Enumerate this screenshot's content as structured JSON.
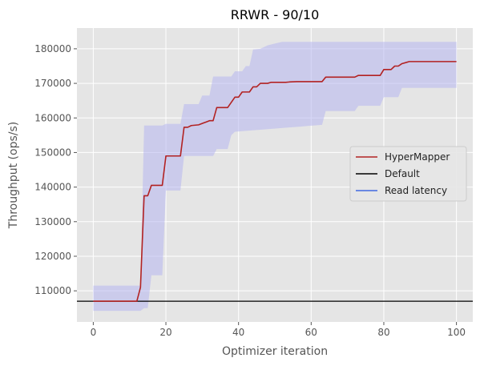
{
  "chart_data": {
    "type": "line",
    "title": "RRWR - 90/10",
    "xlabel": "Optimizer iteration",
    "ylabel": "Throughput (ops/s)",
    "xlim": [
      -4.5,
      104.5
    ],
    "ylim": [
      101000,
      186000
    ],
    "x_ticks": [
      0,
      20,
      40,
      60,
      80,
      100
    ],
    "y_ticks": [
      110000,
      120000,
      130000,
      140000,
      150000,
      160000,
      170000,
      180000
    ],
    "grid": true,
    "legend_position": "center-right",
    "series": [
      {
        "name": "HyperMapper",
        "color": "#b22222",
        "points": [
          [
            0,
            107000
          ],
          [
            12,
            107000
          ],
          [
            13,
            111000
          ],
          [
            14,
            137500
          ],
          [
            15,
            137500
          ],
          [
            16,
            140500
          ],
          [
            19,
            140500
          ],
          [
            20,
            149000
          ],
          [
            24,
            149000
          ],
          [
            25,
            157300
          ],
          [
            26,
            157300
          ],
          [
            27,
            157800
          ],
          [
            29,
            158000
          ],
          [
            31,
            158800
          ],
          [
            32,
            159200
          ],
          [
            33,
            159200
          ],
          [
            34,
            163000
          ],
          [
            37,
            163000
          ],
          [
            38,
            164500
          ],
          [
            39,
            166000
          ],
          [
            40,
            166000
          ],
          [
            41,
            167500
          ],
          [
            43,
            167500
          ],
          [
            44,
            169000
          ],
          [
            45,
            169000
          ],
          [
            46,
            170000
          ],
          [
            48,
            170000
          ],
          [
            49,
            170300
          ],
          [
            53,
            170300
          ],
          [
            54,
            170400
          ],
          [
            56,
            170500
          ],
          [
            63,
            170500
          ],
          [
            64,
            171800
          ],
          [
            72,
            171800
          ],
          [
            73,
            172300
          ],
          [
            79,
            172300
          ],
          [
            80,
            174000
          ],
          [
            82,
            174000
          ],
          [
            83,
            175000
          ],
          [
            84,
            175000
          ],
          [
            85,
            175700
          ],
          [
            87,
            176300
          ],
          [
            100,
            176300
          ]
        ],
        "band_upper": [
          [
            0,
            111500
          ],
          [
            13,
            111500
          ],
          [
            14,
            157800
          ],
          [
            19,
            157800
          ],
          [
            20,
            158300
          ],
          [
            24,
            158300
          ],
          [
            25,
            164000
          ],
          [
            29,
            164000
          ],
          [
            30,
            166500
          ],
          [
            32,
            166500
          ],
          [
            33,
            172000
          ],
          [
            38,
            172000
          ],
          [
            39,
            173500
          ],
          [
            41,
            173500
          ],
          [
            42,
            175000
          ],
          [
            43,
            175000
          ],
          [
            44,
            179800
          ],
          [
            46,
            180000
          ],
          [
            48,
            181000
          ],
          [
            50,
            181500
          ],
          [
            52,
            182000
          ],
          [
            100,
            182000
          ]
        ],
        "band_lower": [
          [
            0,
            104200
          ],
          [
            13,
            104200
          ],
          [
            14,
            105000
          ],
          [
            15,
            105000
          ],
          [
            16,
            114500
          ],
          [
            19,
            114500
          ],
          [
            20,
            139000
          ],
          [
            24,
            139000
          ],
          [
            25,
            149000
          ],
          [
            33,
            149000
          ],
          [
            34,
            151000
          ],
          [
            37,
            151000
          ],
          [
            38,
            155000
          ],
          [
            39,
            156000
          ],
          [
            63,
            158000
          ],
          [
            64,
            162000
          ],
          [
            72,
            162000
          ],
          [
            73,
            163500
          ],
          [
            79,
            163500
          ],
          [
            80,
            166000
          ],
          [
            84,
            166000
          ],
          [
            85,
            168700
          ],
          [
            100,
            168700
          ]
        ]
      },
      {
        "name": "Default",
        "color": "#000000",
        "y": 107000
      },
      {
        "name": "Read latency",
        "color": "#4169e1",
        "points": []
      }
    ]
  }
}
